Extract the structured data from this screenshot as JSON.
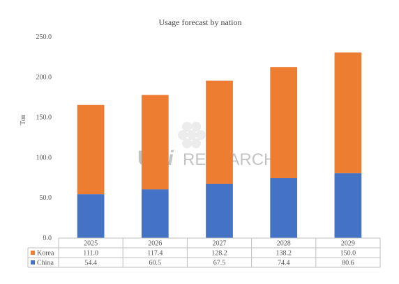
{
  "chart_data": {
    "type": "bar",
    "stacked": true,
    "title": "Usage  forecast by nation",
    "xlabel": "",
    "ylabel": "Ton",
    "categories": [
      "2025",
      "2026",
      "2027",
      "2028",
      "2029"
    ],
    "series": [
      {
        "name": "China",
        "values": [
          54.4,
          60.5,
          67.5,
          74.4,
          80.6
        ],
        "color": "#4472C4"
      },
      {
        "name": "Korea",
        "values": [
          111.0,
          117.4,
          128.2,
          138.2,
          150.0
        ],
        "color": "#ED7D31"
      }
    ],
    "table_row_order": [
      "Korea",
      "China"
    ],
    "table_values": {
      "Korea": [
        "111.0",
        "117.4",
        "128.2",
        "138.2",
        "150.0"
      ],
      "China": [
        "54.4",
        "60.5",
        "67.5",
        "74.4",
        "80.6"
      ]
    },
    "ylim": [
      0,
      250
    ],
    "yticks": [
      "0.0",
      "50.0",
      "100.0",
      "150.0",
      "200.0",
      "250.0"
    ],
    "grid": false,
    "legend": "data-table-left"
  },
  "watermark": {
    "text_left": "U",
    "text_mid": "bi",
    "text_right": "RESEARCH"
  }
}
